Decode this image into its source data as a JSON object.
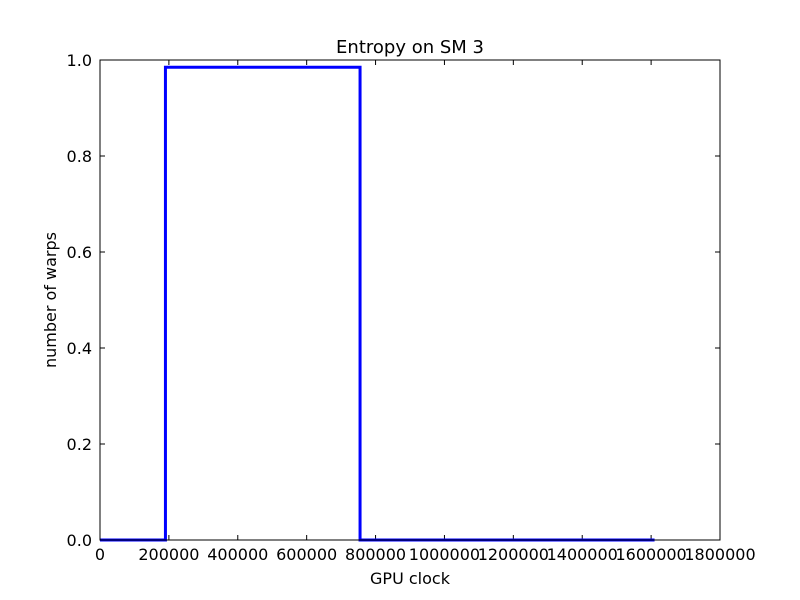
{
  "chart_data": {
    "type": "line",
    "title": "Entropy on SM 3",
    "xlabel": "GPU clock",
    "ylabel": "number of warps",
    "xlim": [
      0,
      1800000
    ],
    "ylim": [
      0.0,
      1.0
    ],
    "x_ticks": [
      0,
      200000,
      400000,
      600000,
      800000,
      1000000,
      1200000,
      1400000,
      1600000,
      1800000
    ],
    "x_tick_labels": [
      "0",
      "200000",
      "400000",
      "600000",
      "800000",
      "1000000",
      "1200000",
      "1400000",
      "1600000",
      "1800000"
    ],
    "y_ticks": [
      0.0,
      0.2,
      0.4,
      0.6,
      0.8,
      1.0
    ],
    "y_tick_labels": [
      "0.0",
      "0.2",
      "0.4",
      "0.6",
      "0.8",
      "1.0"
    ],
    "grid": false,
    "series": [
      {
        "color": "#0000ff",
        "x": [
          0,
          190000,
          190000,
          755000,
          755000,
          1610000
        ],
        "y": [
          0.0,
          0.0,
          0.985,
          0.985,
          0.0,
          0.0
        ]
      }
    ]
  }
}
